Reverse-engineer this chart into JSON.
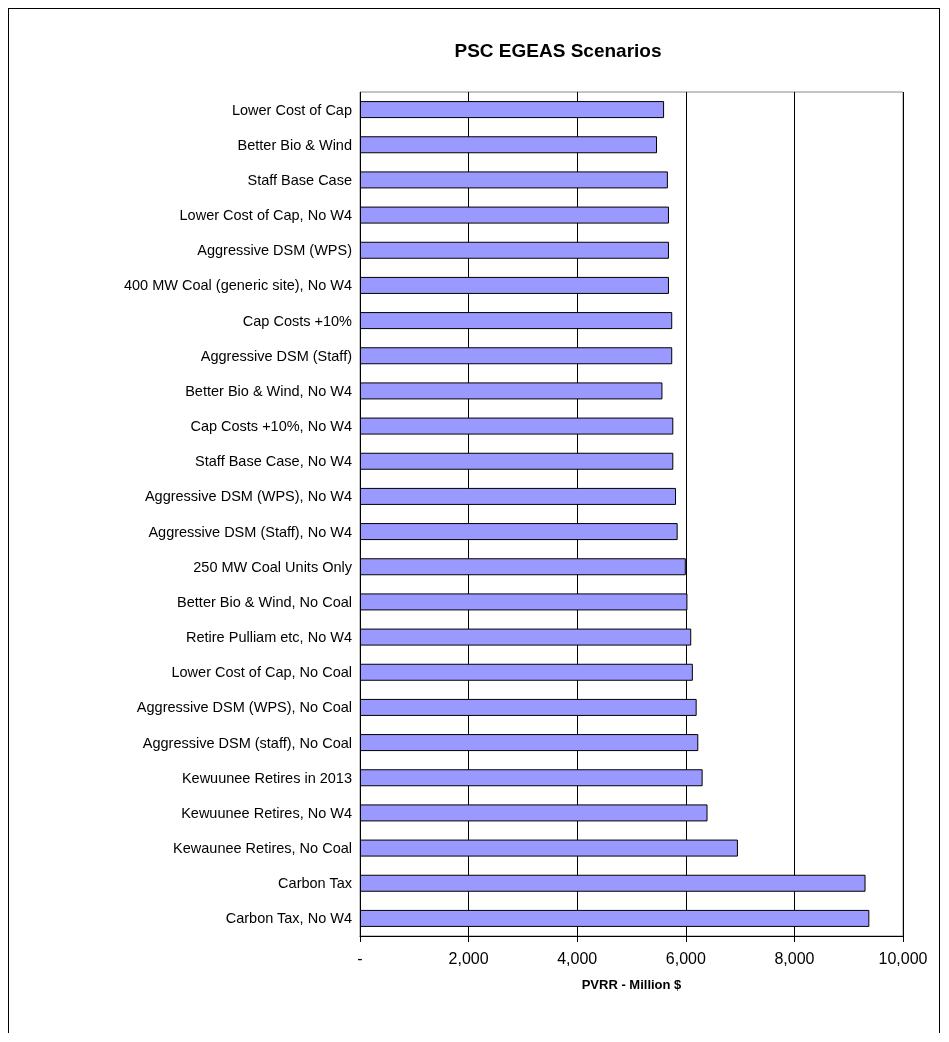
{
  "chart_data": {
    "type": "bar",
    "orientation": "horizontal",
    "title": "PSC EGEAS Scenarios",
    "xlabel": "PVRR - Million $",
    "categories": [
      "Lower Cost of Cap",
      "Better Bio & Wind",
      "Staff Base Case",
      "Lower Cost of Cap, No W4",
      "Aggressive DSM (WPS)",
      "400 MW Coal (generic site), No W4",
      "Cap Costs +10%",
      "Aggressive DSM (Staff)",
      "Better Bio & Wind, No W4",
      "Cap Costs +10%, No W4",
      "Staff Base Case, No W4",
      "Aggressive DSM (WPS), No W4",
      "Aggressive DSM (Staff), No W4",
      "250 MW Coal Units Only",
      "Better Bio & Wind, No Coal",
      "Retire Pulliam etc, No W4",
      "Lower Cost of Cap, No Coal",
      "Aggressive DSM (WPS), No Coal",
      "Aggressive DSM (staff), No Coal",
      "Kewuunee Retires in 2013",
      "Kewuunee Retires, No W4",
      "Kewaunee Retires, No Coal",
      "Carbon Tax",
      "Carbon Tax, No W4"
    ],
    "values": [
      5600,
      5470,
      5670,
      5690,
      5690,
      5690,
      5750,
      5750,
      5570,
      5770,
      5770,
      5820,
      5850,
      6000,
      6030,
      6100,
      6130,
      6200,
      6230,
      6310,
      6400,
      6960,
      9310,
      9380
    ],
    "color": "#9999ff",
    "xlim": [
      0,
      10000
    ],
    "xticks": [
      {
        "value": 0,
        "label": "-"
      },
      {
        "value": 2000,
        "label": "2,000"
      },
      {
        "value": 4000,
        "label": "4,000"
      },
      {
        "value": 6000,
        "label": "6,000"
      },
      {
        "value": 8000,
        "label": "8,000"
      },
      {
        "value": 10000,
        "label": "10,000"
      }
    ],
    "grid": "x"
  }
}
